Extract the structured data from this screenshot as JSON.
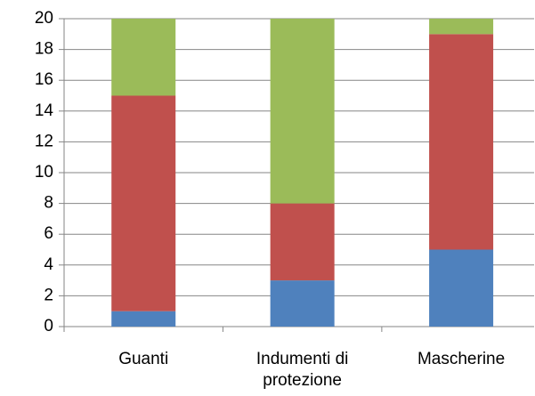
{
  "chart_data": {
    "type": "bar",
    "stacked": true,
    "categories": [
      "Guanti",
      "Indumenti di protezione",
      "Mascherine"
    ],
    "series": [
      {
        "color": "#4f81bd",
        "values": [
          1,
          3,
          5
        ]
      },
      {
        "color": "#c0504d",
        "values": [
          14,
          5,
          14
        ]
      },
      {
        "color": "#9bbb59",
        "values": [
          5,
          12,
          1
        ]
      }
    ],
    "ylim": [
      0,
      20
    ],
    "yticks": [
      0,
      2,
      4,
      6,
      8,
      10,
      12,
      14,
      16,
      18,
      20
    ],
    "grid": true
  }
}
